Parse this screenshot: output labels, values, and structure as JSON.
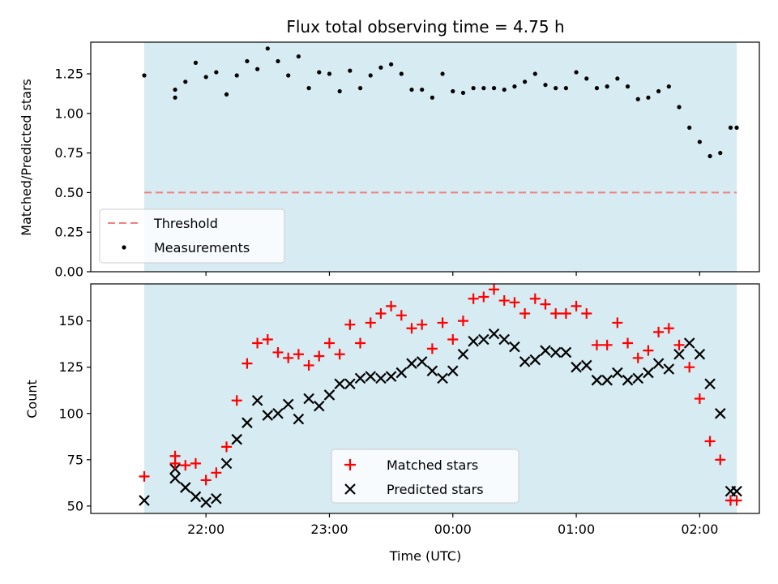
{
  "chart_data": [
    {
      "type": "scatter",
      "title": "Flux total observing time = 4.75 h",
      "xlabel": "",
      "ylabel": "Matched/Predicted stars",
      "ylim": [
        0,
        1.45
      ],
      "yticks": [
        "0.00",
        "0.25",
        "0.50",
        "0.75",
        "1.00",
        "1.25"
      ],
      "ytick_values": [
        0,
        0.25,
        0.5,
        0.75,
        1.0,
        1.25
      ],
      "observing_window": [
        "21:30",
        "02:18"
      ],
      "threshold": 0.5,
      "legend": {
        "placement": "lower-left",
        "entries": [
          "Threshold",
          "Measurements"
        ]
      },
      "series": [
        {
          "name": "Measurements",
          "color": "#000000",
          "x": [
            "21:30",
            "21:45",
            "21:45",
            "21:50",
            "21:55",
            "22:00",
            "22:05",
            "22:10",
            "22:15",
            "22:20",
            "22:25",
            "22:30",
            "22:35",
            "22:40",
            "22:45",
            "22:50",
            "22:55",
            "23:00",
            "23:05",
            "23:10",
            "23:15",
            "23:20",
            "23:25",
            "23:30",
            "23:35",
            "23:40",
            "23:45",
            "23:50",
            "23:55",
            "00:00",
            "00:05",
            "00:10",
            "00:15",
            "00:20",
            "00:25",
            "00:30",
            "00:35",
            "00:40",
            "00:45",
            "00:50",
            "00:55",
            "01:00",
            "01:05",
            "01:10",
            "01:15",
            "01:20",
            "01:25",
            "01:30",
            "01:35",
            "01:40",
            "01:45",
            "01:50",
            "01:55",
            "02:00",
            "02:05",
            "02:10",
            "02:15",
            "02:18"
          ],
          "y": [
            1.24,
            1.1,
            1.15,
            1.2,
            1.32,
            1.23,
            1.26,
            1.12,
            1.24,
            1.33,
            1.28,
            1.41,
            1.33,
            1.24,
            1.36,
            1.16,
            1.26,
            1.25,
            1.14,
            1.27,
            1.16,
            1.24,
            1.29,
            1.31,
            1.25,
            1.15,
            1.15,
            1.1,
            1.25,
            1.14,
            1.13,
            1.16,
            1.16,
            1.16,
            1.15,
            1.17,
            1.2,
            1.25,
            1.18,
            1.16,
            1.16,
            1.26,
            1.22,
            1.16,
            1.17,
            1.22,
            1.17,
            1.09,
            1.1,
            1.14,
            1.17,
            1.04,
            0.91,
            0.82,
            0.73,
            0.75,
            0.91,
            0.91
          ]
        }
      ]
    },
    {
      "type": "scatter",
      "title": "",
      "xlabel": "Time (UTC)",
      "ylabel": "Count",
      "ylim": [
        46,
        170
      ],
      "yticks": [
        "50",
        "75",
        "100",
        "125",
        "150"
      ],
      "ytick_values": [
        50,
        75,
        100,
        125,
        150
      ],
      "xticks": [
        "22:00",
        "23:00",
        "00:00",
        "01:00",
        "02:00"
      ],
      "observing_window": [
        "21:30",
        "02:18"
      ],
      "legend": {
        "placement": "lower-center",
        "entries": [
          "Matched stars",
          "Predicted stars"
        ]
      },
      "series": [
        {
          "name": "Matched stars",
          "color": "#ff0000",
          "marker": "plus",
          "x": [
            "21:30",
            "21:45",
            "21:45",
            "21:50",
            "21:55",
            "22:00",
            "22:05",
            "22:10",
            "22:15",
            "22:20",
            "22:25",
            "22:30",
            "22:35",
            "22:40",
            "22:45",
            "22:50",
            "22:55",
            "23:00",
            "23:05",
            "23:10",
            "23:15",
            "23:20",
            "23:25",
            "23:30",
            "23:35",
            "23:40",
            "23:45",
            "23:50",
            "23:55",
            "00:00",
            "00:05",
            "00:10",
            "00:15",
            "00:20",
            "00:25",
            "00:30",
            "00:35",
            "00:40",
            "00:45",
            "00:50",
            "00:55",
            "01:00",
            "01:05",
            "01:10",
            "01:15",
            "01:20",
            "01:25",
            "01:30",
            "01:35",
            "01:40",
            "01:45",
            "01:50",
            "01:55",
            "02:00",
            "02:05",
            "02:10",
            "02:15",
            "02:18"
          ],
          "y": [
            66,
            77,
            73,
            72,
            73,
            64,
            68,
            82,
            107,
            127,
            138,
            140,
            133,
            130,
            132,
            126,
            131,
            138,
            132,
            148,
            138,
            149,
            154,
            158,
            153,
            146,
            148,
            135,
            149,
            140,
            150,
            162,
            163,
            167,
            161,
            160,
            154,
            162,
            159,
            154,
            154,
            158,
            154,
            137,
            137,
            149,
            138,
            130,
            134,
            144,
            146,
            137,
            125,
            108,
            85,
            75,
            53,
            53
          ]
        },
        {
          "name": "Predicted stars",
          "color": "#000000",
          "marker": "x",
          "x": [
            "21:30",
            "21:45",
            "21:45",
            "21:50",
            "21:55",
            "22:00",
            "22:05",
            "22:10",
            "22:15",
            "22:20",
            "22:25",
            "22:30",
            "22:35",
            "22:40",
            "22:45",
            "22:50",
            "22:55",
            "23:00",
            "23:05",
            "23:10",
            "23:15",
            "23:20",
            "23:25",
            "23:30",
            "23:35",
            "23:40",
            "23:45",
            "23:50",
            "23:55",
            "00:00",
            "00:05",
            "00:10",
            "00:15",
            "00:20",
            "00:25",
            "00:30",
            "00:35",
            "00:40",
            "00:45",
            "00:50",
            "00:55",
            "01:00",
            "01:05",
            "01:10",
            "01:15",
            "01:20",
            "01:25",
            "01:30",
            "01:35",
            "01:40",
            "01:45",
            "01:50",
            "01:55",
            "02:00",
            "02:05",
            "02:10",
            "02:15",
            "02:18"
          ],
          "y": [
            53,
            70,
            65,
            60,
            55,
            52,
            54,
            73,
            86,
            95,
            107,
            99,
            100,
            105,
            97,
            108,
            104,
            110,
            116,
            116,
            119,
            120,
            119,
            120,
            122,
            127,
            128,
            123,
            119,
            123,
            132,
            139,
            140,
            143,
            140,
            136,
            128,
            129,
            134,
            133,
            133,
            125,
            126,
            118,
            118,
            122,
            118,
            119,
            122,
            127,
            124,
            132,
            138,
            132,
            116,
            100,
            58,
            58
          ]
        }
      ]
    }
  ]
}
